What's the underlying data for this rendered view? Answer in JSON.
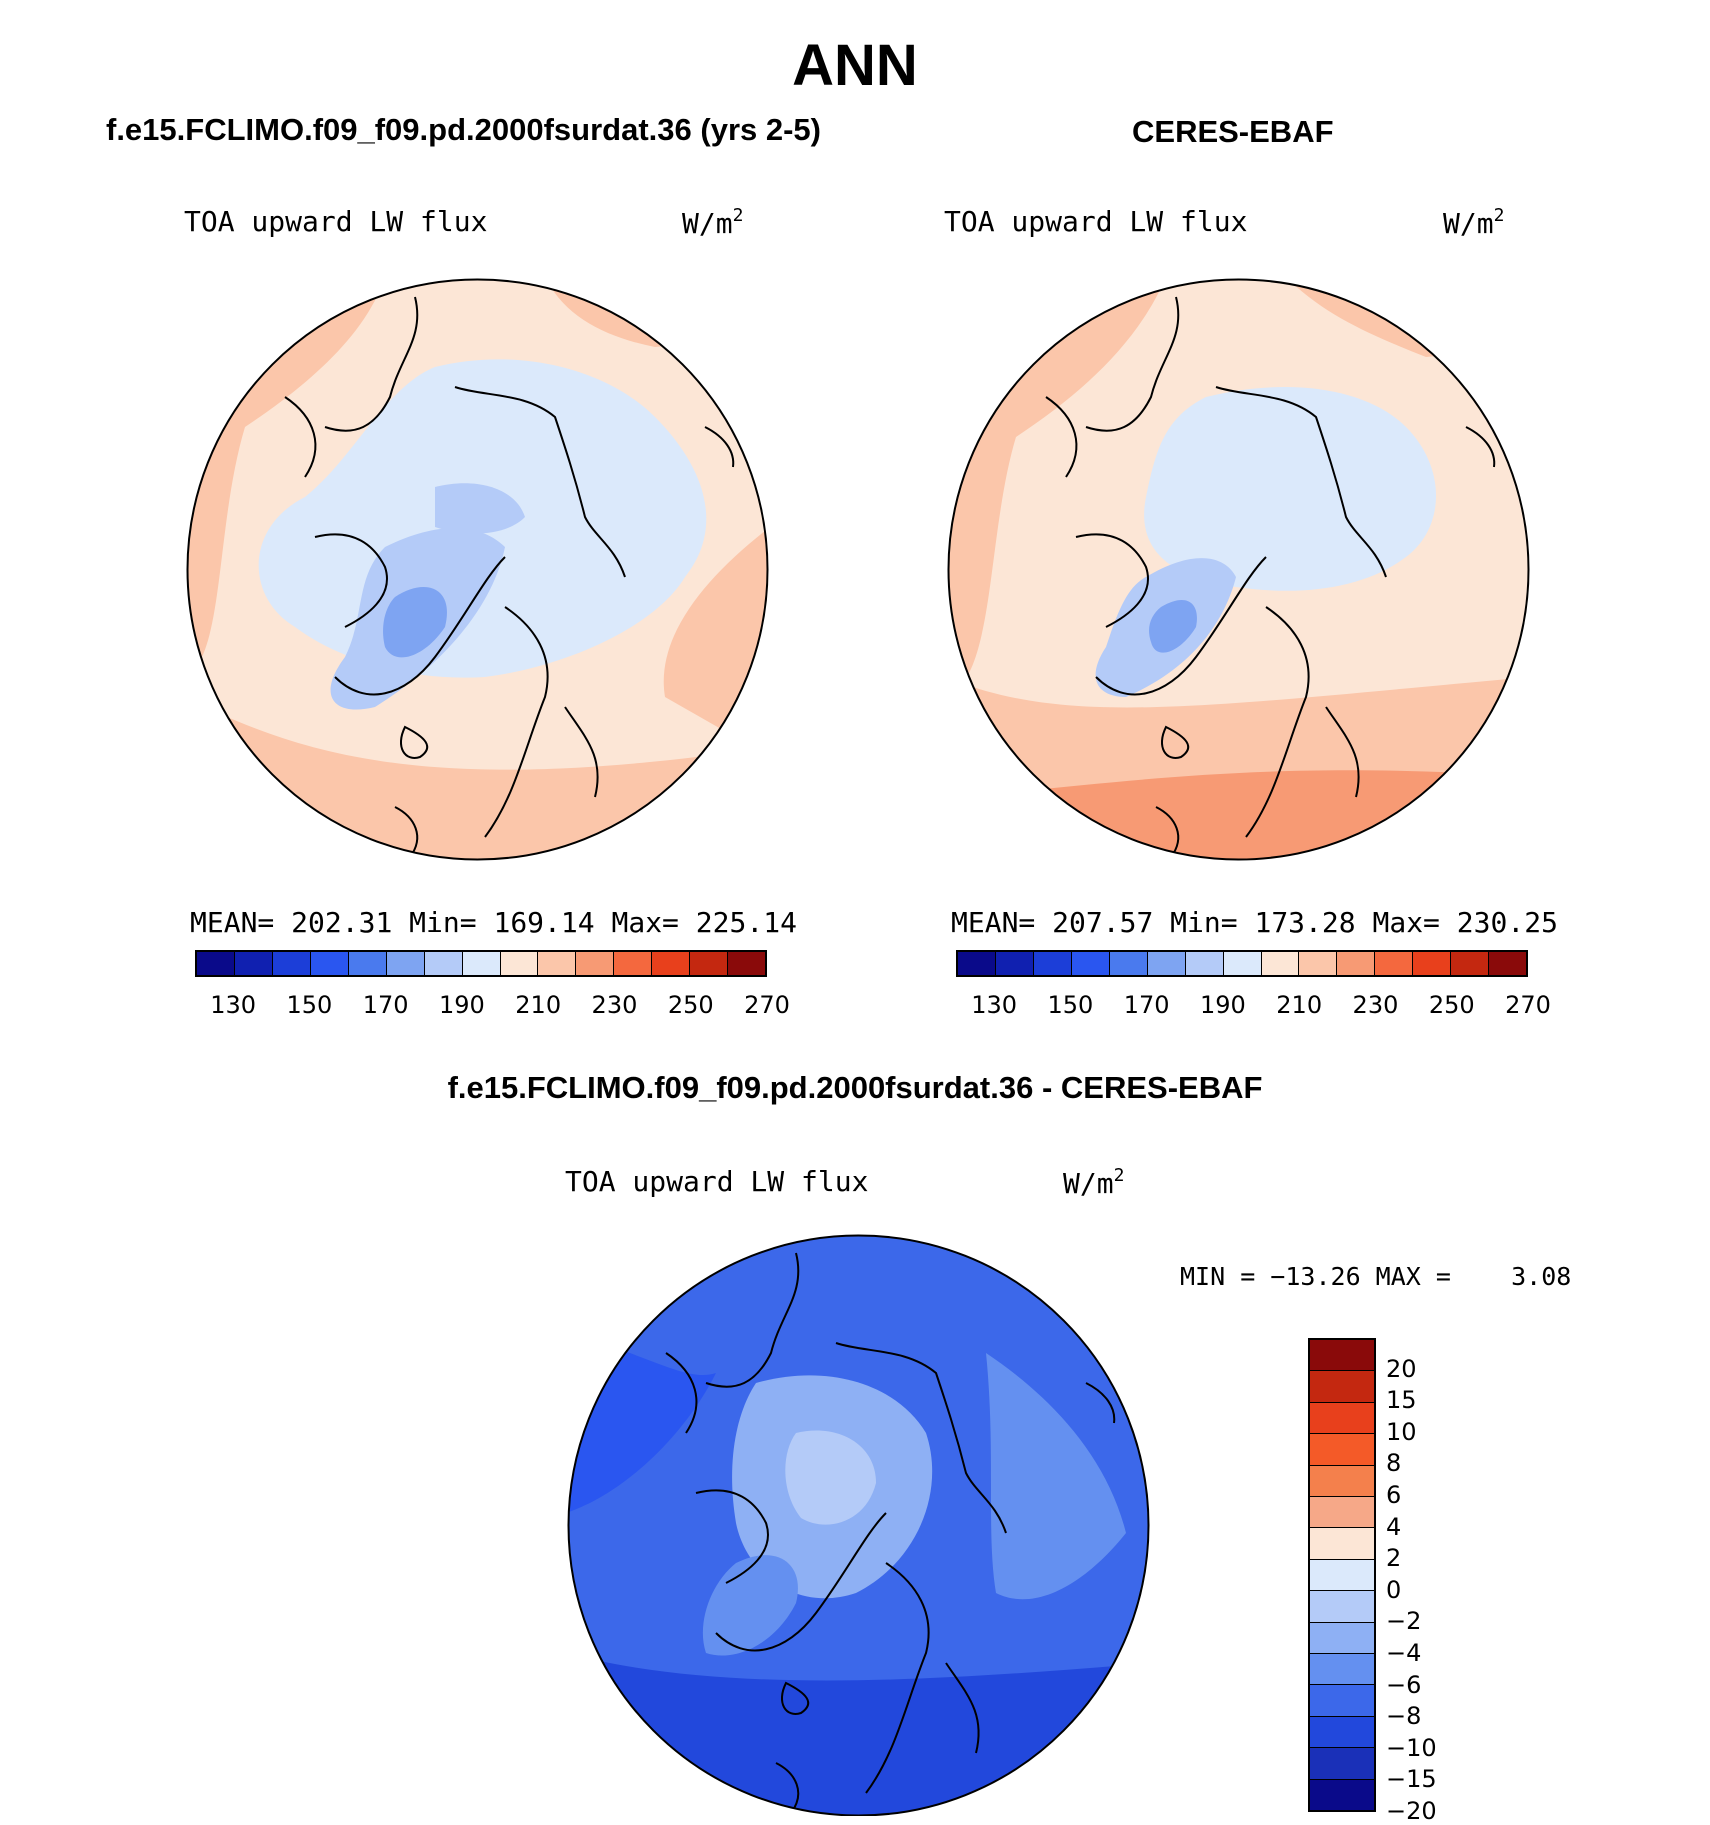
{
  "main_title": "ANN",
  "panels": [
    {
      "title": "f.e15.FCLIMO.f09_f09.pd.2000fsurdat.36 (yrs 2-5)",
      "field_label": "TOA upward LW flux",
      "units": "W/m",
      "units_exp": "2",
      "stats": {
        "mean_label": "MEAN=",
        "mean": "202.31",
        "min_label": "Min=",
        "min": "169.14",
        "max_label": "Max=",
        "max": "225.14"
      }
    },
    {
      "title": "CERES-EBAF",
      "field_label": "TOA upward LW flux",
      "units": "W/m",
      "units_exp": "2",
      "stats": {
        "mean_label": "MEAN=",
        "mean": "207.57",
        "min_label": "Min=",
        "min": "173.28",
        "max_label": "Max=",
        "max": "230.25"
      }
    }
  ],
  "diff_panel": {
    "title": "f.e15.FCLIMO.f09_f09.pd.2000fsurdat.36 - CERES-EBAF",
    "field_label": "TOA upward LW flux",
    "units": "W/m",
    "units_exp": "2",
    "minmax_text": "MIN = −13.26 MAX =    3.08"
  },
  "abs_colorbar": {
    "colors": [
      "#0a0a8a",
      "#1020b0",
      "#1c3ed8",
      "#2a56f0",
      "#4a7aee",
      "#7ea4f2",
      "#b4cbf8",
      "#dbe9fb",
      "#fce6d6",
      "#fbc6aa",
      "#f79a74",
      "#f4683e",
      "#e8401c",
      "#c42810",
      "#8a0a0a"
    ],
    "tick_labels": [
      "130",
      "150",
      "170",
      "190",
      "210",
      "230",
      "250",
      "270"
    ]
  },
  "diff_colorbar": {
    "colors": [
      "#8a0a0a",
      "#c42810",
      "#e8401c",
      "#f45a28",
      "#f4804c",
      "#f6a888",
      "#fce6d6",
      "#dbe9fb",
      "#b4cbf8",
      "#8eb0f4",
      "#6490f0",
      "#3c68ea",
      "#2248dc",
      "#1a30b8",
      "#0a0a8a"
    ],
    "tick_labels": [
      "20",
      "15",
      "10",
      "8",
      "6",
      "4",
      "2",
      "0",
      "−2",
      "−4",
      "−6",
      "−8",
      "−10",
      "−15",
      "−20"
    ]
  }
}
